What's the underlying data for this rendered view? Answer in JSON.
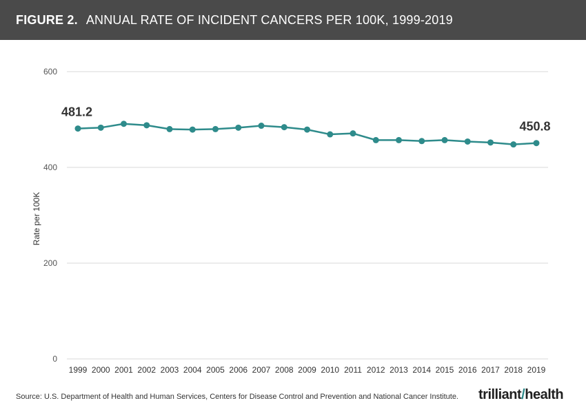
{
  "header": {
    "figure_label": "FIGURE 2.",
    "title": "ANNUAL RATE OF INCIDENT CANCERS PER 100K, 1999-2019"
  },
  "source": "Source: U.S. Department of Health and Human Services, Centers for Disease Control and Prevention and National Cancer Institute.",
  "logo": {
    "part1": "trilliant",
    "part2": "health"
  },
  "colors": {
    "header_bg": "#4a4a4a",
    "line": "#2e8b8b",
    "grid": "#d9d9d9"
  },
  "chart_data": {
    "type": "line",
    "title": "ANNUAL RATE OF INCIDENT CANCERS PER 100K, 1999-2019",
    "ylabel": "Rate per 100K",
    "xlabel": "",
    "ylim": [
      0,
      600
    ],
    "yticks": [
      0,
      200,
      400,
      600
    ],
    "grid": true,
    "categories": [
      "1999",
      "2000",
      "2001",
      "2002",
      "2003",
      "2004",
      "2005",
      "2006",
      "2007",
      "2008",
      "2009",
      "2010",
      "2011",
      "2012",
      "2013",
      "2014",
      "2015",
      "2016",
      "2017",
      "2018",
      "2019"
    ],
    "series": [
      {
        "values": [
          481.2,
          483,
          491,
          488,
          480,
          479,
          480,
          483,
          487,
          484,
          479,
          469,
          471,
          457,
          457,
          455,
          457,
          454,
          452,
          448,
          450.8
        ]
      }
    ],
    "annotations": [
      {
        "index": 0,
        "text": "481.2"
      },
      {
        "index": 20,
        "text": "450.8"
      }
    ]
  }
}
